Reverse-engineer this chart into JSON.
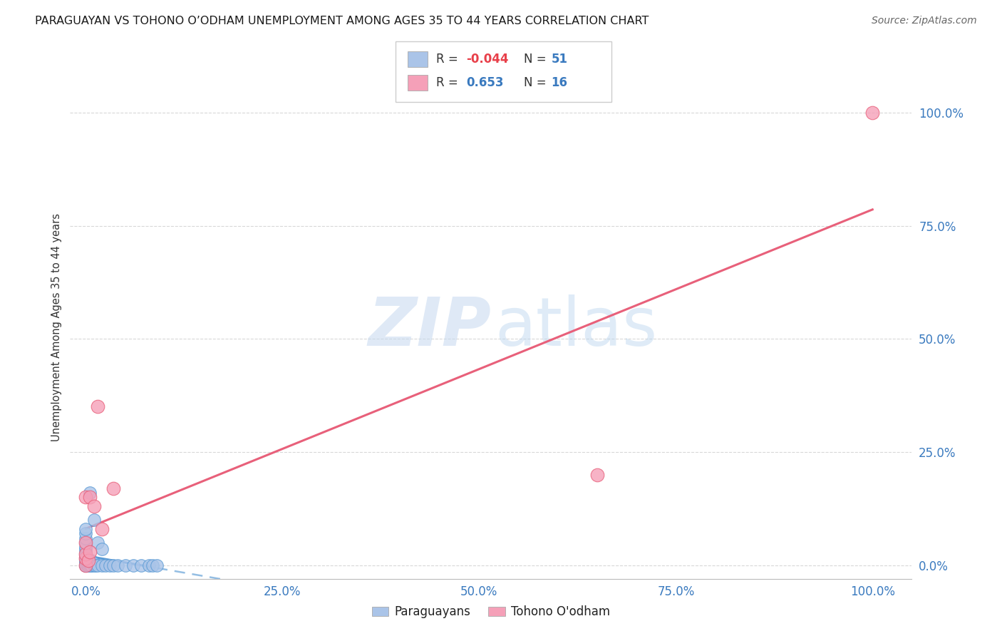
{
  "title": "PARAGUAYAN VS TOHONO O’ODHAM UNEMPLOYMENT AMONG AGES 35 TO 44 YEARS CORRELATION CHART",
  "source": "Source: ZipAtlas.com",
  "ylabel": "Unemployment Among Ages 35 to 44 years",
  "x_tick_labels": [
    "0.0%",
    "25.0%",
    "50.0%",
    "75.0%",
    "100.0%"
  ],
  "y_tick_labels": [
    "0.0%",
    "25.0%",
    "50.0%",
    "75.0%",
    "100.0%"
  ],
  "x_ticks": [
    0,
    25,
    50,
    75,
    100
  ],
  "y_ticks": [
    0,
    25,
    50,
    75,
    100
  ],
  "xlim": [
    -2,
    105
  ],
  "ylim": [
    -3,
    108
  ],
  "paraguayan_color": "#aac4e8",
  "tohono_color": "#f5a0b8",
  "paraguayan_line_color": "#5b9bd5",
  "tohono_line_color": "#e8607a",
  "paraguayan_x": [
    0.0,
    0.0,
    0.0,
    0.0,
    0.0,
    0.0,
    0.0,
    0.0,
    0.0,
    0.0,
    0.0,
    0.0,
    0.0,
    0.0,
    0.0,
    0.0,
    0.0,
    0.0,
    0.0,
    0.0,
    0.0,
    0.0,
    0.2,
    0.3,
    0.3,
    0.3,
    0.5,
    0.5,
    0.5,
    0.5,
    0.7,
    0.7,
    0.7,
    1.0,
    1.0,
    1.0,
    1.2,
    1.5,
    1.5,
    2.0,
    2.0,
    2.5,
    3.0,
    3.5,
    4.0,
    5.0,
    6.0,
    7.0,
    8.0,
    8.5,
    9.0
  ],
  "paraguayan_y": [
    0.0,
    0.0,
    0.0,
    0.0,
    0.0,
    0.0,
    0.0,
    0.0,
    0.5,
    0.5,
    1.0,
    1.0,
    1.5,
    2.0,
    2.5,
    3.0,
    3.5,
    4.0,
    5.0,
    6.0,
    7.0,
    8.0,
    0.0,
    0.0,
    0.5,
    1.0,
    0.0,
    0.5,
    1.0,
    16.0,
    0.0,
    0.0,
    1.0,
    0.0,
    0.5,
    10.0,
    0.0,
    0.0,
    5.0,
    0.0,
    3.5,
    0.0,
    0.0,
    0.0,
    0.0,
    0.0,
    0.0,
    0.0,
    0.0,
    0.0,
    0.0
  ],
  "tohono_x": [
    0.0,
    0.0,
    0.0,
    0.0,
    0.0,
    0.3,
    0.5,
    0.5,
    1.0,
    1.5,
    2.0,
    3.5,
    65.0,
    100.0
  ],
  "tohono_y": [
    0.0,
    1.5,
    2.5,
    5.0,
    15.0,
    1.0,
    3.0,
    15.0,
    13.0,
    35.0,
    8.0,
    17.0,
    20.0,
    100.0
  ],
  "background_color": "#ffffff",
  "grid_color": "#d8d8d8",
  "par_line_start_x": 0.0,
  "par_line_start_y": 2.8,
  "par_line_end_x": 100.0,
  "par_line_end_y": 0.0,
  "toh_line_start_x": 0.0,
  "toh_line_start_y": 7.0,
  "toh_line_end_x": 100.0,
  "toh_line_end_y": 75.0
}
